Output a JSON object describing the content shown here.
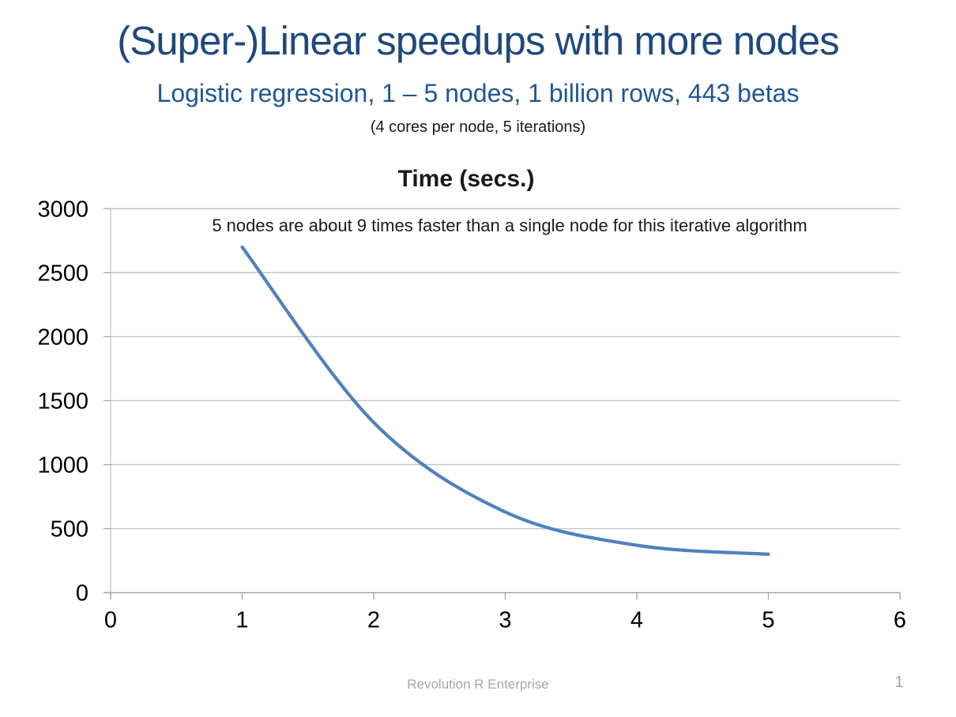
{
  "slide": {
    "title": "(Super-)Linear speedups with more nodes",
    "subtitle": "Logistic regression, 1 – 5 nodes, 1 billion rows, 443 betas",
    "subsubtitle": "(4 cores per node, 5 iterations)",
    "footer": "Revolution R Enterprise",
    "page_number": "1"
  },
  "colors": {
    "title": "#1F497D",
    "subtitle": "#1F5795",
    "line": "#4F81BD",
    "gridline": "#C3C3C3",
    "axis": "#A6A6A6",
    "footer": "#A6A6A6",
    "tick_label": "#000000"
  },
  "chart_data": {
    "type": "line",
    "title": "Time (secs.)",
    "annotation": "5 nodes are about 9 times faster than a single node for this iterative algorithm",
    "series": [
      {
        "name": "Time (secs.)",
        "x": [
          1,
          2,
          3,
          4,
          5
        ],
        "values": [
          2700,
          1330,
          630,
          370,
          300
        ]
      }
    ],
    "xlabel": "",
    "ylabel": "",
    "xlim": [
      0,
      6
    ],
    "ylim": [
      0,
      3000
    ],
    "x_ticks": [
      0,
      1,
      2,
      3,
      4,
      5,
      6
    ],
    "y_ticks": [
      0,
      500,
      1000,
      1500,
      2000,
      2500,
      3000
    ],
    "grid": "horizontal",
    "legend": "none",
    "line_smooth": true,
    "marker": "none"
  }
}
